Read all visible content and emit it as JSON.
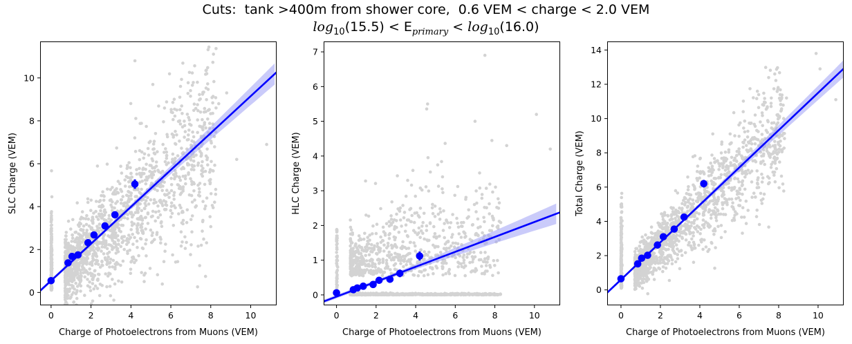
{
  "title": {
    "line1": "Cuts:  tank >400m from shower core,  0.6 VEM < charge < 2.0 VEM",
    "line2_lhs": "log",
    "line2_base": "10",
    "line2_lhs_val": "(15.5) < E",
    "line2_sub": "primary",
    "line2_mid": " < log",
    "line2_rhs_val": "(16.0)"
  },
  "colors": {
    "scatter": "#d3d3d3",
    "fit_line": "#0000ff",
    "band": "#9fa0f5",
    "binned_points": "#0000ff"
  },
  "chart_data": [
    {
      "type": "scatter",
      "xlabel": "Charge of Photoelectrons from Muons (VEM)",
      "ylabel": "SLC Charge (VEM)",
      "xlim": [
        -0.55,
        11.3
      ],
      "ylim": [
        -0.6,
        11.7
      ],
      "xticks": [
        0,
        2,
        4,
        6,
        8,
        10
      ],
      "yticks": [
        0,
        2,
        4,
        6,
        8,
        10
      ],
      "fit": {
        "slope": 0.86,
        "intercept": 0.55
      },
      "binned": [
        {
          "x": 0.0,
          "y": 0.55,
          "err": 0.06
        },
        {
          "x": 0.85,
          "y": 1.38,
          "err": 0.1
        },
        {
          "x": 1.05,
          "y": 1.68,
          "err": 0.1
        },
        {
          "x": 1.35,
          "y": 1.75,
          "err": 0.1
        },
        {
          "x": 1.85,
          "y": 2.32,
          "err": 0.1
        },
        {
          "x": 2.15,
          "y": 2.68,
          "err": 0.12
        },
        {
          "x": 2.7,
          "y": 3.1,
          "err": 0.14
        },
        {
          "x": 3.2,
          "y": 3.62,
          "err": 0.16
        },
        {
          "x": 4.2,
          "y": 5.05,
          "err": 0.22
        }
      ],
      "scatter_outliers": [
        {
          "x": 10.8,
          "y": 6.9
        },
        {
          "x": 9.3,
          "y": 6.2
        },
        {
          "x": 7.8,
          "y": 10.2
        },
        {
          "x": 4.2,
          "y": 10.8
        },
        {
          "x": 8.4,
          "y": 8.8
        },
        {
          "x": 8.8,
          "y": 9.3
        }
      ]
    },
    {
      "type": "scatter",
      "xlabel": "Charge of Photoelectrons from Muons (VEM)",
      "ylabel": "HLC Charge (VEM)",
      "xlim": [
        -0.65,
        11.3
      ],
      "ylim": [
        -0.3,
        7.3
      ],
      "xticks": [
        0,
        2,
        4,
        6,
        8,
        10
      ],
      "yticks": [
        0,
        1,
        2,
        3,
        4,
        5,
        6,
        7
      ],
      "fit": {
        "slope": 0.215,
        "intercept": -0.05
      },
      "binned": [
        {
          "x": 0.0,
          "y": 0.06,
          "err": 0.03
        },
        {
          "x": 0.85,
          "y": 0.15,
          "err": 0.05
        },
        {
          "x": 1.05,
          "y": 0.2,
          "err": 0.05
        },
        {
          "x": 1.35,
          "y": 0.25,
          "err": 0.06
        },
        {
          "x": 1.85,
          "y": 0.3,
          "err": 0.06
        },
        {
          "x": 2.15,
          "y": 0.42,
          "err": 0.08
        },
        {
          "x": 2.7,
          "y": 0.45,
          "err": 0.09
        },
        {
          "x": 3.2,
          "y": 0.62,
          "err": 0.11
        },
        {
          "x": 4.2,
          "y": 1.12,
          "err": 0.13
        }
      ],
      "scatter_outliers": [
        {
          "x": 7.5,
          "y": 6.9
        },
        {
          "x": 4.6,
          "y": 5.5
        },
        {
          "x": 10.1,
          "y": 5.2
        },
        {
          "x": 10.8,
          "y": 4.2
        },
        {
          "x": 8.6,
          "y": 4.3
        },
        {
          "x": 7.0,
          "y": 5.0
        }
      ]
    },
    {
      "type": "scatter",
      "xlabel": "Charge of Photoelectrons from Muons (VEM)",
      "ylabel": "Total Charge (VEM)",
      "xlim": [
        -0.7,
        11.3
      ],
      "ylim": [
        -0.9,
        14.5
      ],
      "xticks": [
        0,
        2,
        4,
        6,
        8,
        10
      ],
      "yticks": [
        0,
        2,
        4,
        6,
        8,
        10,
        12,
        14
      ],
      "fit": {
        "slope": 1.09,
        "intercept": 0.6
      },
      "binned": [
        {
          "x": 0.0,
          "y": 0.65,
          "err": 0.07
        },
        {
          "x": 0.85,
          "y": 1.52,
          "err": 0.1
        },
        {
          "x": 1.05,
          "y": 1.85,
          "err": 0.1
        },
        {
          "x": 1.35,
          "y": 2.02,
          "err": 0.1
        },
        {
          "x": 1.85,
          "y": 2.62,
          "err": 0.1
        },
        {
          "x": 2.15,
          "y": 3.1,
          "err": 0.12
        },
        {
          "x": 2.7,
          "y": 3.55,
          "err": 0.14
        },
        {
          "x": 3.2,
          "y": 4.25,
          "err": 0.16
        },
        {
          "x": 4.2,
          "y": 6.2,
          "err": 0.22
        }
      ],
      "scatter_outliers": [
        {
          "x": 9.9,
          "y": 13.8
        },
        {
          "x": 10.1,
          "y": 12.9
        },
        {
          "x": 8.4,
          "y": 11.2
        },
        {
          "x": 10.9,
          "y": 11.1
        },
        {
          "x": 7.8,
          "y": 12.6
        },
        {
          "x": 6.2,
          "y": 10.4
        }
      ]
    }
  ]
}
